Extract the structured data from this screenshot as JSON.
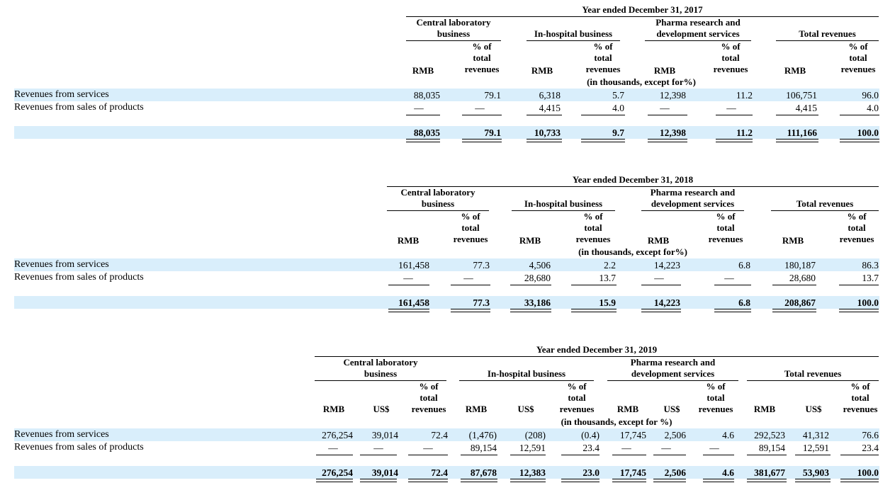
{
  "header_labels": {
    "central": [
      "Central laboratory",
      "business"
    ],
    "inhospital": "In-hospital business",
    "pharma": [
      "Pharma research and",
      "development services"
    ],
    "total": "Total revenues",
    "pct": [
      "% of",
      "total",
      "revenues"
    ],
    "rmb": "RMB",
    "usd": "US$",
    "units_note": "(in thousands, except for%)",
    "units_note_2019": "(in thousands, except for %)"
  },
  "row_labels": {
    "services": "Revenues from services",
    "products": "Revenues from sales of products"
  },
  "tables": [
    {
      "period": "Year ended December 31, 2017",
      "services": [
        "88,035",
        "79.1",
        "6,318",
        "5.7",
        "12,398",
        "11.2",
        "106,751",
        "96.0"
      ],
      "products": [
        "—",
        "—",
        "4,415",
        "4.0",
        "—",
        "—",
        "4,415",
        "4.0"
      ],
      "total": [
        "88,035",
        "79.1",
        "10,733",
        "9.7",
        "12,398",
        "11.2",
        "111,166",
        "100.0"
      ]
    },
    {
      "period": "Year ended December 31, 2018",
      "services": [
        "161,458",
        "77.3",
        "4,506",
        "2.2",
        "14,223",
        "6.8",
        "180,187",
        "86.3"
      ],
      "products": [
        "—",
        "—",
        "28,680",
        "13.7",
        "—",
        "—",
        "28,680",
        "13.7"
      ],
      "total": [
        "161,458",
        "77.3",
        "33,186",
        "15.9",
        "14,223",
        "6.8",
        "208,867",
        "100.0"
      ]
    },
    {
      "period": "Year ended December 31, 2019",
      "services": [
        "276,254",
        "39,014",
        "72.4",
        "(1,476)",
        "(208)",
        "(0.4)",
        "17,745",
        "2,506",
        "4.6",
        "292,523",
        "41,312",
        "76.6"
      ],
      "products": [
        "—",
        "—",
        "—",
        "89,154",
        "12,591",
        "23.4",
        "—",
        "—",
        "—",
        "89,154",
        "12,591",
        "23.4"
      ],
      "total": [
        "276,254",
        "39,014",
        "72.4",
        "87,678",
        "12,383",
        "23.0",
        "17,745",
        "2,506",
        "4.6",
        "381,677",
        "53,903",
        "100.0"
      ]
    }
  ]
}
